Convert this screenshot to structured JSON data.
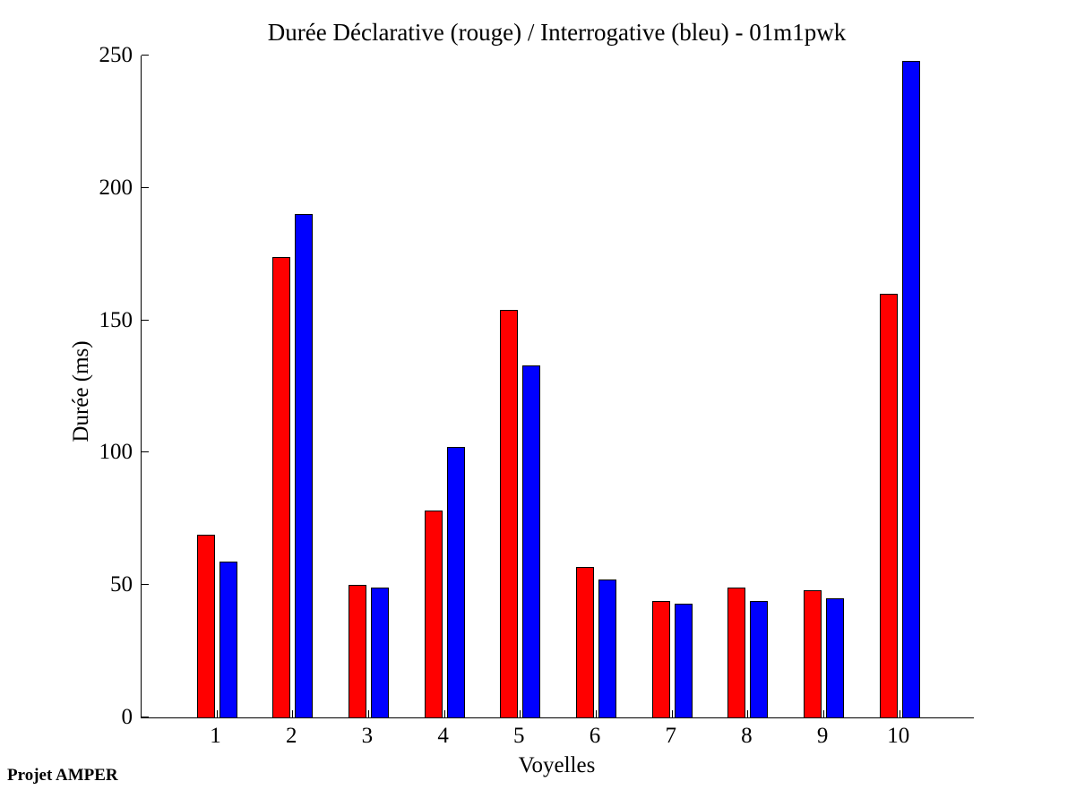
{
  "figure": {
    "title": "Durée Déclarative (rouge) / Interrogative (bleu) - 01m1pwk",
    "xlabel": "Voyelles",
    "ylabel": "Durée (ms)",
    "footer": "Projet AMPER"
  },
  "chart_data": {
    "type": "bar",
    "title": "Durée Déclarative (rouge) / Interrogative (bleu) - 01m1pwk",
    "xlabel": "Voyelles",
    "ylabel": "Durée (ms)",
    "categories": [
      "1",
      "2",
      "3",
      "4",
      "5",
      "6",
      "7",
      "8",
      "9",
      "10"
    ],
    "series": [
      {
        "key": "declarative",
        "name": "Déclarative (rouge)",
        "color": "#ff0000",
        "values": [
          69,
          174,
          50,
          78,
          154,
          57,
          44,
          49,
          48,
          160
        ]
      },
      {
        "key": "interrogative",
        "name": "Interrogative (bleu)",
        "color": "#0000ff",
        "values": [
          59,
          190,
          49,
          102,
          133,
          52,
          43,
          44,
          45,
          248
        ]
      }
    ],
    "ylim": [
      0,
      250
    ],
    "yticks": [
      0,
      50,
      100,
      150,
      200,
      250
    ],
    "grid": false,
    "legend_position": "none",
    "annotation": "Projet AMPER",
    "axis_color": "#000000",
    "background_color": "#ffffff"
  }
}
